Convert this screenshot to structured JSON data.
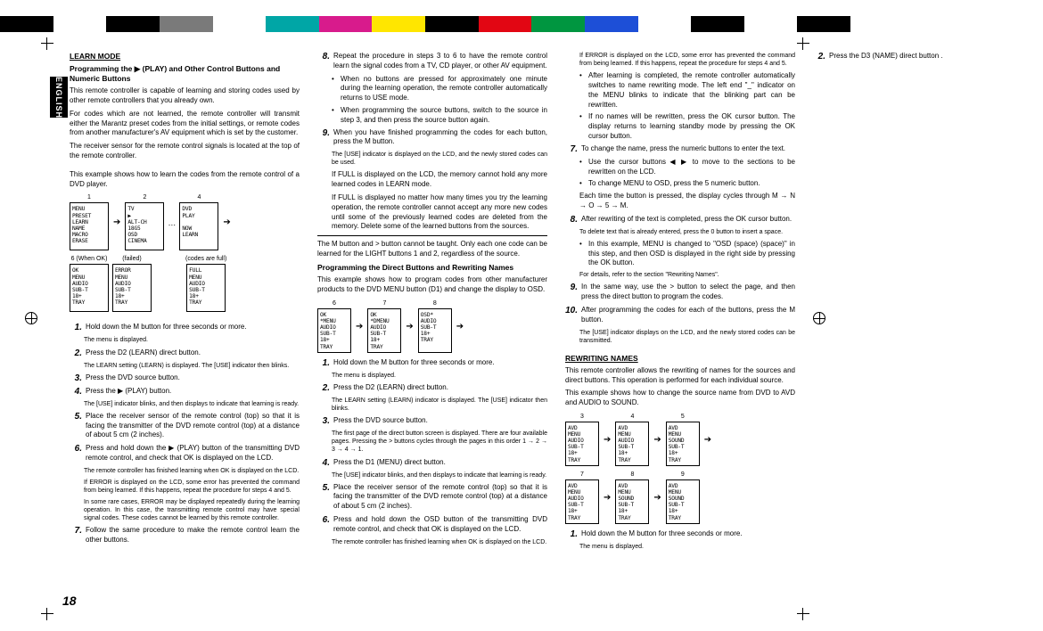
{
  "colorBar": [
    "#000000",
    "#ffffff",
    "#000000",
    "#7a7a7a",
    "#ffffff",
    "#00a6a6",
    "#d81b8c",
    "#ffe600",
    "#000000",
    "#e20613",
    "#009640",
    "#1d4fd7",
    "#ffffff",
    "#000000",
    "#ffffff",
    "#000000"
  ],
  "tab": "ENGLISH",
  "pageNumber": "18",
  "h_learn": "LEARN MODE",
  "h_prog1": "Programming the ▶ (PLAY) and Other Control Buttons and Numeric Buttons",
  "p_lm1": "This remote controller is capable of learning and storing codes used by other remote controllers that you already own.",
  "p_lm2": "For codes which are not learned, the remote controller will transmit either the Marantz preset codes from the initial settings, or remote codes from another manufacturer's AV equipment which is set by the customer.",
  "p_lm3": "The receiver sensor for the remote control signals is located at the top of the remote controller.",
  "p_lm4": "This example shows how to learn the codes from the remote control of a DVD player.",
  "lcd_row1": {
    "labels": [
      "1",
      "2",
      "",
      "4"
    ],
    "screens": [
      "MENU\nPRESET\nLEARN\nNAME\nMACRO\nERASE",
      "TV\n▶\nALT-CH\n 18G5\nOSD\nCINEMA",
      "",
      "   DVD\n   PLAY\n\n   NOW\n   LEARN"
    ]
  },
  "lcd_row2": {
    "labels": [
      "6  (When OK)",
      "(failed)",
      "",
      "(codes are full)"
    ],
    "screens": [
      "OK\nMENU\nAUDIO\nSUB-T\n18+\nTRAY",
      "ERROR\nMENU\nAUDIO\nSUB-T\n18+\nTRAY",
      "",
      "FULL\nMENU\nAUDIO\nSUB-T\n18+\nTRAY"
    ]
  },
  "s1": {
    "n": "1.",
    "t": "Hold down the M button for three seconds or more."
  },
  "s1sub": "The menu is displayed.",
  "s2": {
    "n": "2.",
    "t": "Press the D2 (LEARN) direct button."
  },
  "s2sub": "The LEARN setting (LEARN) is displayed. The [USE] indicator then blinks.",
  "s3": {
    "n": "3.",
    "t": "Press the DVD source button."
  },
  "s4": {
    "n": "4.",
    "t": "Press the ▶ (PLAY) button."
  },
  "s4sub": "The [USE] indicator blinks, and then displays to indicate that learning is ready.",
  "s5": {
    "n": "5.",
    "t": "Place the receiver sensor of the remote control (top) so that it is facing the transmitter of the DVD remote control (top) at a distance of about 5 cm (2 inches)."
  },
  "s6": {
    "n": "6.",
    "t": "Press and hold down the ▶ (PLAY) button of the transmitting DVD remote control, and check that OK is displayed on the LCD."
  },
  "s6sub1": "The remote controller has finished learning when OK is displayed on the LCD.",
  "s6sub2": "If ERROR is displayed on the LCD, some error has prevented the command from being learned. If this happens, repeat the procedure for steps 4 and 5.",
  "s6sub3": "In some rare cases, ERROR may be displayed repeatedly during the learning operation. In this case, the transmitting remote control may have special signal codes. These codes cannot be learned by this remote controller.",
  "s7": {
    "n": "7.",
    "t": "Follow the same procedure to make the remote control learn the other buttons."
  },
  "s8": {
    "n": "8.",
    "t": "Repeat the procedure in steps 3 to 6 to have the remote control learn the signal codes from a TV, CD player, or other AV equipment."
  },
  "b8a": "When no buttons are pressed for approximately one minute during the learning operation, the remote controller automatically returns to USE mode.",
  "b8b": "When programming the source buttons, switch to the source in step 3, and then press the source button again.",
  "s9": {
    "n": "9.",
    "t": "When you have finished programming the codes for each button, press the M button."
  },
  "s9sub": "The [USE] indicator is displayed on the LCD, and the newly stored codes can be used.",
  "p_err1": "If FULL is displayed on the LCD, the memory cannot hold any more learned codes in LEARN mode.",
  "p_err2": "If FULL is displayed no matter how many times you try the learning operation, the remote controller cannot accept any more new codes until some of the previously learned codes are deleted from the memory. Delete some of the learned buttons from the sources.",
  "p_err3": "The M button and > button cannot be taught. Only each one code can be learned for the LIGHT buttons 1 and 2, regardless of the source.",
  "h_prog2": "Programming the Direct Buttons and Rewriting Names",
  "p_db1": "This example shows how to program codes from other manufacturer products to the DVD MENU button (D1) and change the display to OSD.",
  "lcd_row3": {
    "labels": [
      "6",
      "7",
      "8",
      ""
    ],
    "screens": [
      "OK\n*MENU\nAUDIO\nSUB-T\n18+\nTRAY",
      "OK\n*DMENU\nAUDIO\nSUB-T\n18+\nTRAY",
      "OSD*\nAUDIO\nSUB-T\n18+\nTRAY",
      ""
    ]
  },
  "d1": {
    "n": "1.",
    "t": "Hold down the M button for three seconds or more."
  },
  "d1sub": "The menu is displayed.",
  "d2": {
    "n": "2.",
    "t": "Press the D2 (LEARN) direct button."
  },
  "d2sub": "The LEARN setting (LEARN) indicator is displayed. The [USE] indicator then blinks.",
  "d3": {
    "n": "3.",
    "t": "Press the DVD source button."
  },
  "d3sub": "The first page of the direct button screen is displayed. There are four available pages. Pressing the > buttons cycles through the pages in this order 1 → 2 → 3 → 4 → 1.",
  "d4": {
    "n": "4.",
    "t": "Press the D1 (MENU) direct button."
  },
  "d4sub": "The [USE] indicator blinks, and then displays to indicate that learning is ready.",
  "d5": {
    "n": "5.",
    "t": "Place the receiver sensor of the remote control (top) so that it is facing the transmitter of the DVD remote control (top) at a distance of about 5 cm (2 inches)."
  },
  "d6": {
    "n": "6.",
    "t": "Press and hold down the OSD button of the transmitting DVD remote control, and check that OK is displayed on the LCD."
  },
  "d6sub1": "The remote controller has finished learning when OK is displayed on the LCD.",
  "d6sub2": "If ERROR is displayed on the LCD, some error has prevented the command from being learned. If this happens, repeat the procedure for steps 4 and 5.",
  "bd6a": "After learning is completed, the remote controller automatically switches to name rewriting mode. The left end \"_\" indicator on the MENU blinks to indicate that the blinking part can be rewritten.",
  "bd6b": "If no names will be rewritten, press the OK cursor button. The display returns to learning standby mode by pressing the OK cursor button.",
  "d7": {
    "n": "7.",
    "t": "To change the name, press the numeric buttons to enter the text."
  },
  "bd7a": "Use the cursor buttons ◀ ▶ to move to the sections to be rewritten on the LCD.",
  "bd7b": "To change MENU to OSD, press the 5 numeric button.",
  "p_d7c": "Each time the button is pressed, the display cycles through M → N → O → 5 → M.",
  "d8": {
    "n": "8.",
    "t": "After rewriting of the text is completed, press the OK cursor button."
  },
  "d8sub": "To delete text that is already entered, press the 0 button to insert a space.",
  "bd8a": "In this example, MENU is changed to \"OSD (space) (space)\" in this step, and then OSD is displayed in the right side by pressing the OK button.",
  "d8sub2": "For details, refer to the section \"Rewriting Names\".",
  "d9": {
    "n": "9.",
    "t": "In the same way, use the > button to select the page, and then press the direct button to program the codes."
  },
  "d10": {
    "n": "10.",
    "t": "After programming the codes for each of the buttons, press the M button."
  },
  "d10sub": "The [USE] indicator displays on the LCD, and the newly stored codes can be transmitted.",
  "h_rewrite": "REWRITING NAMES",
  "p_rw1": "This remote controller allows the rewriting of names for the sources and direct buttons. This operation is performed for each individual source.",
  "p_rw2": "This example shows how to change the source name from DVD to AVD and AUDIO to SOUND.",
  "lcd_row4": {
    "labels": [
      "3",
      "4",
      "5"
    ],
    "screens": [
      "AVD\nMENU\nAUDIO\nSUB-T\n18+\nTRAY",
      "AVD\nMENU\nAUDIO\nSUB-T\n18+\nTRAY",
      "AVD\nMENU\nSOUND\nSUB-T\n18+\nTRAY"
    ]
  },
  "lcd_row5": {
    "labels": [
      "7",
      "8",
      "9"
    ],
    "screens": [
      "AVD\nMENU\nAUDIO\nSUB-T\n18+\nTRAY",
      "AVD\nMENU\nSOUND\nSUB-T\n18+\nTRAY",
      "AVD\nMENU\nSOUND\nSUB-T\n18+\nTRAY"
    ]
  },
  "r1": {
    "n": "1.",
    "t": "Hold down the M button for three seconds or more."
  },
  "r1sub": "The menu is displayed.",
  "r2": {
    "n": "2.",
    "t": "Press the D3 (NAME) direct button ."
  }
}
